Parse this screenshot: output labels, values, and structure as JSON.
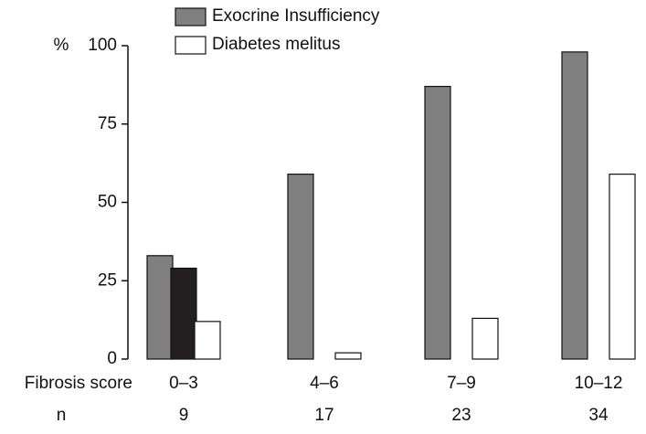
{
  "chart_data": {
    "type": "bar",
    "y_label": "%",
    "x_label": "Fibrosis score",
    "n_label": "n",
    "categories": [
      "0–3",
      "4–6",
      "7–9",
      "10–12"
    ],
    "n_values": [
      9,
      17,
      23,
      34
    ],
    "series": [
      {
        "name": "Exocrine Insufficiency",
        "color": "#808080",
        "values": [
          33,
          59,
          87,
          98
        ]
      },
      {
        "color": "#231f20",
        "values": [
          29,
          null,
          null,
          null
        ]
      },
      {
        "name": "Diabetes melitus",
        "color": "#ffffff",
        "values": [
          12,
          2,
          13,
          59
        ]
      }
    ],
    "ylim": [
      0,
      100
    ],
    "yticks": [
      0,
      25,
      50,
      75,
      100
    ],
    "grid": false
  }
}
